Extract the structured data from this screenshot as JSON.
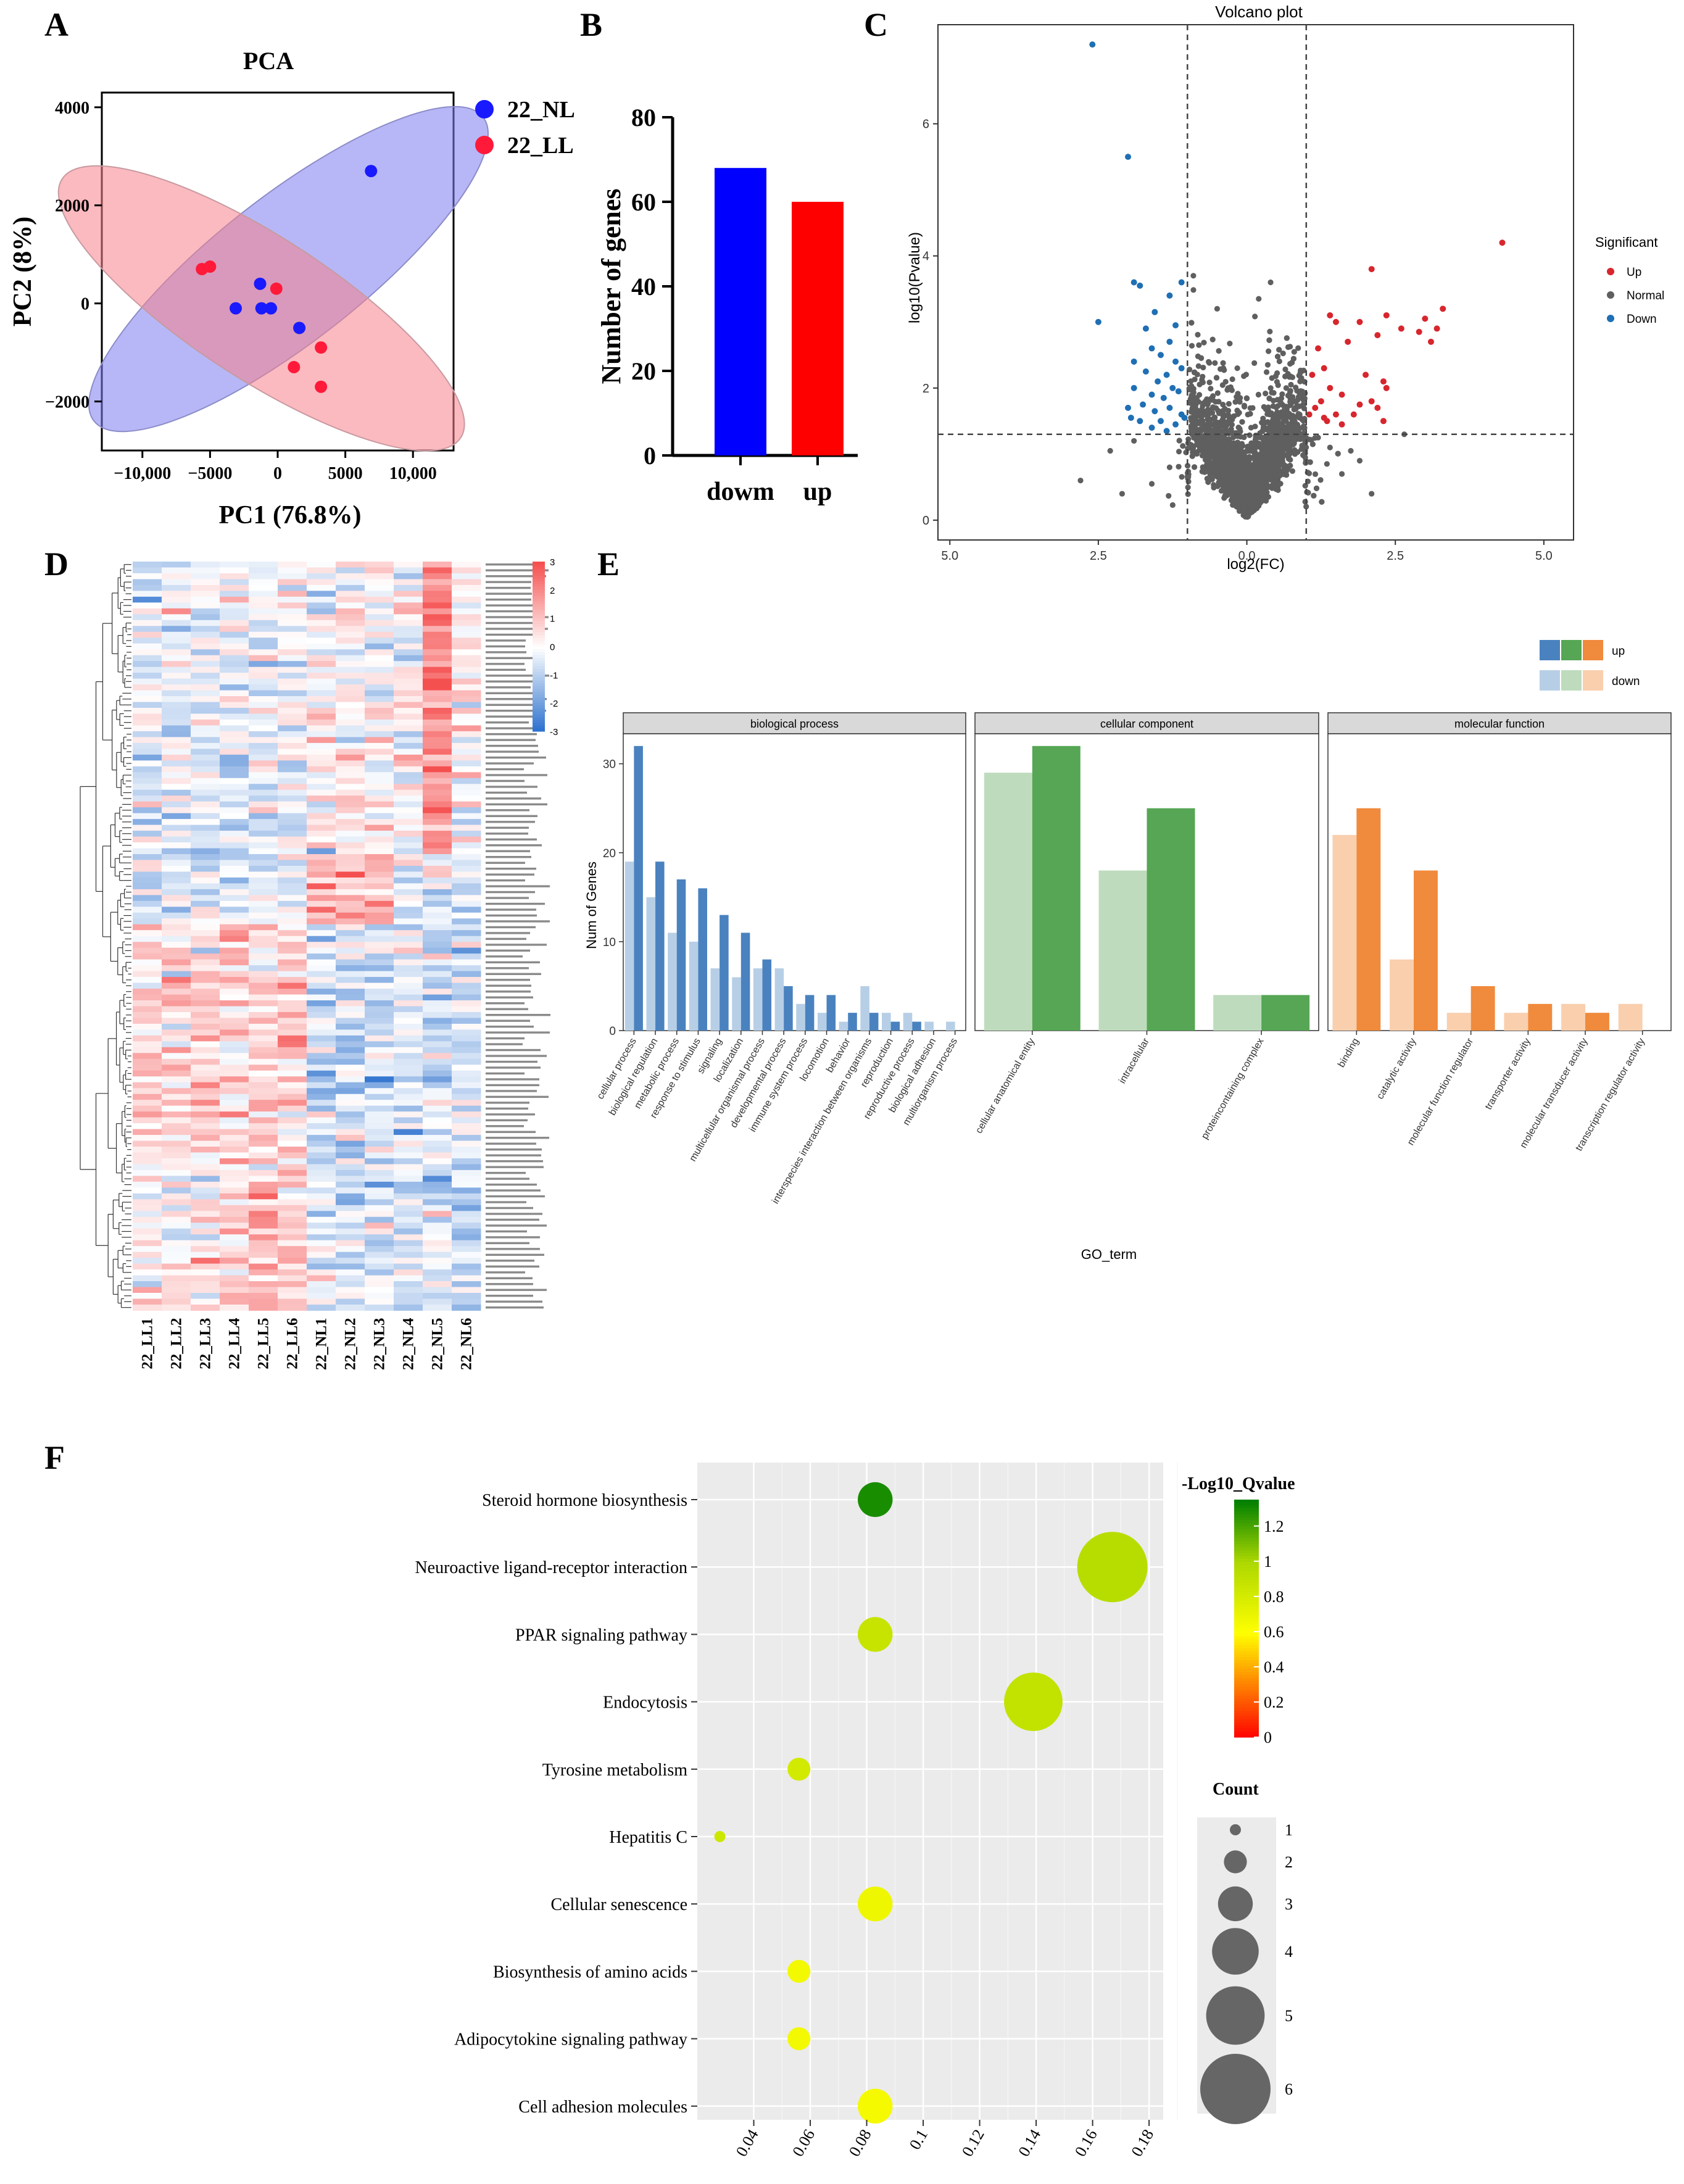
{
  "panels": {
    "a": "A",
    "b": "B",
    "c": "C",
    "d": "D",
    "e": "E",
    "f": "F"
  },
  "chart_data": [
    {
      "id": "pca",
      "type": "scatter",
      "title": "PCA",
      "xlabel": "PC1 (76.8%)",
      "ylabel": "PC2 (8%)",
      "xlim": [
        -13000,
        13000
      ],
      "ylim": [
        -3000,
        4300
      ],
      "xticks": [
        -10000,
        -5000,
        0,
        5000,
        10000
      ],
      "xtick_labels": [
        "−10,000",
        "−5000",
        "0",
        "5000",
        "10,000"
      ],
      "yticks": [
        -2000,
        0,
        2000,
        4000
      ],
      "ytick_labels": [
        "−2000",
        "0",
        "2000",
        "4000"
      ],
      "series": [
        {
          "name": "22_NL",
          "color": "#1a1aff",
          "points": [
            [
              6900,
              2700
            ],
            [
              -1300,
              400
            ],
            [
              -3100,
              -100
            ],
            [
              -1200,
              -100
            ],
            [
              -500,
              -100
            ],
            [
              1600,
              -500
            ]
          ]
        },
        {
          "name": "22_LL",
          "color": "#ff1a3a",
          "points": [
            [
              -5600,
              700
            ],
            [
              -5000,
              750
            ],
            [
              -100,
              300
            ],
            [
              1200,
              -1300
            ],
            [
              3200,
              -900
            ],
            [
              3200,
              -1700
            ]
          ]
        }
      ],
      "legend": "right"
    },
    {
      "id": "bar",
      "type": "bar",
      "categories": [
        "dowm",
        "up"
      ],
      "values": [
        68,
        60
      ],
      "colors": [
        "#0000ff",
        "#ff0000"
      ],
      "ylabel": "Number of genes",
      "ylim": [
        0,
        80
      ],
      "yticks": [
        0,
        20,
        40,
        60,
        80
      ],
      "ytick_labels": [
        "0",
        "20",
        "40",
        "60",
        "80"
      ]
    },
    {
      "id": "volcano",
      "type": "scatter",
      "title": "Volcano plot",
      "xlabel": "log2(FC)",
      "ylabel": "log10(Pvalue)",
      "xlim": [
        -5.2,
        5.5
      ],
      "ylim": [
        -0.3,
        7.5
      ],
      "xticks": [
        -5,
        -2.5,
        0,
        2.5,
        5
      ],
      "xtick_labels": [
        "5.0",
        "2.5",
        "0.0",
        "2.5",
        "5.0"
      ],
      "yticks": [
        0,
        2,
        4,
        6
      ],
      "ytick_labels": [
        "0",
        "2",
        "4",
        "6"
      ],
      "thresholds": {
        "x": [
          -1,
          1
        ],
        "y": 1.3
      },
      "legend_title": "Significant",
      "series": [
        {
          "name": "Up",
          "color": "#d7262d",
          "points": [
            [
              4.3,
              4.2
            ],
            [
              2.1,
              3.8
            ],
            [
              3.3,
              3.2
            ],
            [
              3.2,
              2.9
            ],
            [
              3.1,
              2.7
            ],
            [
              3,
              3.05
            ],
            [
              2.9,
              2.85
            ],
            [
              2.6,
              2.9
            ],
            [
              2.35,
              3.1
            ],
            [
              2.2,
              2.8
            ],
            [
              1.9,
              3.0
            ],
            [
              1.7,
              2.7
            ],
            [
              1.5,
              3.0
            ],
            [
              1.4,
              3.1
            ],
            [
              1.2,
              2.6
            ],
            [
              1.3,
              2.3
            ],
            [
              2.0,
              2.2
            ],
            [
              2.3,
              2.1
            ],
            [
              2.35,
              2.0
            ],
            [
              2.1,
              1.8
            ],
            [
              1.9,
              1.75
            ],
            [
              1.6,
              1.9
            ],
            [
              1.4,
              2.0
            ],
            [
              1.25,
              1.8
            ],
            [
              1.15,
              1.7
            ],
            [
              1.05,
              1.6
            ],
            [
              1.5,
              1.6
            ],
            [
              1.8,
              1.6
            ],
            [
              2.2,
              1.7
            ],
            [
              2.3,
              1.5
            ],
            [
              1.3,
              1.55
            ],
            [
              1.6,
              1.45
            ],
            [
              1.1,
              2.2
            ],
            [
              1.35,
              1.5
            ]
          ]
        },
        {
          "name": "Normal",
          "color": "#5f5f5f",
          "points": []
        },
        {
          "name": "Down",
          "color": "#1f6fb4",
          "points": [
            [
              -2.6,
              7.2
            ],
            [
              -2.0,
              5.5
            ],
            [
              -1.9,
              3.6
            ],
            [
              -1.8,
              3.55
            ],
            [
              -2.5,
              3.0
            ],
            [
              -1.1,
              3.6
            ],
            [
              -1.3,
              3.4
            ],
            [
              -1.2,
              2.95
            ],
            [
              -1.55,
              3.15
            ],
            [
              -1.7,
              2.9
            ],
            [
              -1.3,
              2.7
            ],
            [
              -1.6,
              2.6
            ],
            [
              -1.45,
              2.5
            ],
            [
              -1.2,
              2.4
            ],
            [
              -1.9,
              2.4
            ],
            [
              -1.1,
              2.3
            ],
            [
              -1.35,
              2.2
            ],
            [
              -1.7,
              2.25
            ],
            [
              -1.5,
              2.1
            ],
            [
              -1.25,
              2.0
            ],
            [
              -1.9,
              2.0
            ],
            [
              -1.6,
              1.9
            ],
            [
              -1.4,
              1.85
            ],
            [
              -1.15,
              1.95
            ],
            [
              -1.75,
              1.75
            ],
            [
              -1.3,
              1.7
            ],
            [
              -1.55,
              1.65
            ],
            [
              -2.0,
              1.7
            ],
            [
              -1.1,
              1.6
            ],
            [
              -1.45,
              1.5
            ],
            [
              -1.8,
              1.5
            ],
            [
              -1.2,
              1.45
            ],
            [
              -1.6,
              1.4
            ],
            [
              -1.05,
              1.55
            ],
            [
              -1.35,
              1.35
            ],
            [
              -1.95,
              1.55
            ]
          ]
        }
      ]
    },
    {
      "id": "heatmap",
      "type": "heatmap",
      "columns": [
        "22_LL1",
        "22_LL2",
        "22_LL3",
        "22_LL4",
        "22_LL5",
        "22_LL6",
        "22_NL1",
        "22_NL2",
        "22_NL3",
        "22_NL4",
        "22_NL5",
        "22_NL6"
      ],
      "rows": 128,
      "color_range": [
        -3,
        3
      ],
      "colorbar_ticks": [
        "3",
        "2",
        "1",
        "0",
        "-1",
        "-2",
        "-3"
      ]
    },
    {
      "id": "go",
      "type": "bar",
      "ylabel": "Num of Genes",
      "xlabel": "GO_term",
      "ylim": [
        0,
        34
      ],
      "yticks": [
        0,
        10,
        20,
        30
      ],
      "ytick_labels": [
        "0",
        "10",
        "20",
        "30"
      ],
      "legend": {
        "up": "up",
        "down": "down"
      },
      "facets": [
        {
          "title": "biological process",
          "up_color": "#4a82bf",
          "down_color": "#b7cfe6",
          "categories": [
            "cellular process",
            "biological regulation",
            "metabolic process",
            "response to stimulus",
            "signaling",
            "localization",
            "multicellular organismal process",
            "developmental process",
            "immune system process",
            "locomotion",
            "behavior",
            "interspecies interaction between organisms",
            "reproduction",
            "reproductive process",
            "biological adhesion",
            "multiorganism process"
          ],
          "up": [
            32,
            19,
            17,
            16,
            13,
            11,
            8,
            5,
            4,
            4,
            2,
            2,
            1,
            1,
            0,
            0
          ],
          "down": [
            19,
            15,
            11,
            10,
            7,
            6,
            7,
            7,
            3,
            2,
            1,
            5,
            2,
            2,
            1,
            1
          ]
        },
        {
          "title": "cellular component",
          "up_color": "#56a655",
          "down_color": "#bedcbd",
          "categories": [
            "cellular anatomical entity",
            "intracellular",
            "proteincontaining complex"
          ],
          "up": [
            32,
            25,
            4
          ],
          "down": [
            29,
            18,
            4
          ]
        },
        {
          "title": "molecular function",
          "up_color": "#f08a3c",
          "down_color": "#f9cfae",
          "categories": [
            "binding",
            "catalytic activity",
            "molecular function regulator",
            "transporter activity",
            "molecular transducer activity",
            "transcription regulator activity"
          ],
          "up": [
            25,
            18,
            5,
            3,
            2,
            0
          ],
          "down": [
            22,
            8,
            2,
            2,
            3,
            3
          ]
        }
      ]
    },
    {
      "id": "kegg",
      "type": "scatter",
      "xlim": [
        0.02,
        0.185
      ],
      "xticks": [
        0.04,
        0.06,
        0.08,
        0.1,
        0.12,
        0.14,
        0.16,
        0.18
      ],
      "xtick_labels": [
        "0.04",
        "0.06",
        "0.08",
        "0.1",
        "0.12",
        "0.14",
        "0.16",
        "0.18"
      ],
      "colorbar_title": "-Log10_Qvalue",
      "colorbar_ticks": [
        "1.2",
        "1",
        "0.8",
        "0.6",
        "0.4",
        "0.2",
        "0"
      ],
      "color_range": [
        0,
        1.35
      ],
      "size_title": "Count",
      "size_ticks": [
        "1",
        "2",
        "3",
        "4",
        "5",
        "6"
      ],
      "pathways": [
        "Steroid hormone biosynthesis",
        "Neuroactive ligand-receptor interaction",
        "PPAR signaling pathway",
        "Endocytosis",
        "Tyrosine metabolism",
        "Hepatitis C",
        "Cellular senescence",
        "Biosynthesis of amino acids",
        "Adipocytokine signaling pathway",
        "Cell adhesion molecules"
      ],
      "rich_factor": [
        0.083,
        0.167,
        0.083,
        0.139,
        0.056,
        0.028,
        0.083,
        0.056,
        0.056,
        0.083
      ],
      "count": [
        3,
        6,
        3,
        5,
        2,
        1,
        3,
        2,
        2,
        3
      ],
      "qvalue": [
        1.3,
        0.95,
        0.88,
        0.9,
        0.82,
        0.85,
        0.68,
        0.66,
        0.66,
        0.65
      ]
    }
  ]
}
